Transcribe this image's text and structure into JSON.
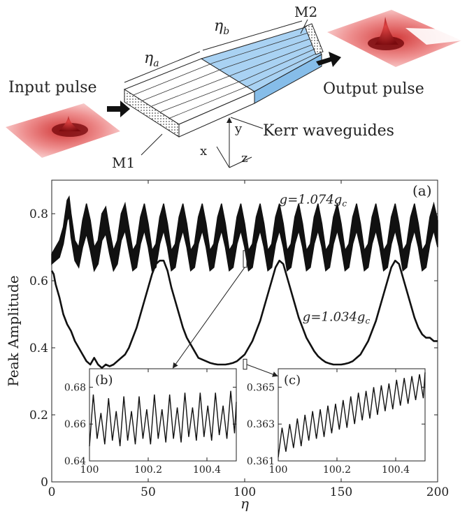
{
  "schematic": {
    "input_label": "Input pulse",
    "output_label": "Output pulse",
    "kerr_label": "Kerr waveguides",
    "m1_label": "M1",
    "m2_label": "M2",
    "eta_a": "η",
    "eta_a_sub": "a",
    "eta_b": "η",
    "eta_b_sub": "b",
    "axis_x": "x",
    "axis_y": "y",
    "axis_z": "z",
    "colors": {
      "pulse": "#c8181e",
      "pulse_light": "#f2b0b0",
      "blue_section": "#a9d2f3",
      "white_section": "#ffffff"
    }
  },
  "chart_data": [
    {
      "id": "main",
      "type": "line",
      "panel_label": "(a)",
      "xlabel": "η",
      "ylabel": "Peak Amplitude",
      "xlim": [
        0,
        200
      ],
      "ylim": [
        0,
        0.9
      ],
      "xticks": [
        0,
        50,
        100,
        150,
        200
      ],
      "yticks": [
        0,
        0.2,
        0.4,
        0.6,
        0.8
      ],
      "xtick_labels": [
        "0",
        "50",
        "100",
        "150",
        "200"
      ],
      "ytick_labels": [
        "0",
        "0.2",
        "0.4",
        "0.6",
        "0.8"
      ],
      "grid": false,
      "series": [
        {
          "name": "g=1.074g",
          "name_sub": "c",
          "band": true,
          "x": [
            0,
            2,
            4,
            6,
            8,
            9,
            10,
            12,
            14,
            16,
            18,
            20,
            22,
            24,
            26,
            28,
            30,
            32,
            34,
            36,
            38,
            40,
            42,
            44,
            46,
            48,
            50,
            52,
            54,
            56,
            58,
            60,
            62,
            64,
            66,
            68,
            70,
            72,
            74,
            76,
            78,
            80,
            82,
            84,
            86,
            88,
            90,
            92,
            94,
            96,
            98,
            100,
            102,
            104,
            106,
            108,
            110,
            112,
            114,
            116,
            118,
            120,
            122,
            124,
            126,
            128,
            130,
            132,
            134,
            136,
            138,
            140,
            142,
            144,
            146,
            148,
            150,
            152,
            154,
            156,
            158,
            160,
            162,
            164,
            166,
            168,
            170,
            172,
            174,
            176,
            178,
            180,
            182,
            184,
            186,
            188,
            190,
            192,
            194,
            196,
            198,
            200
          ],
          "y_upper": [
            0.68,
            0.7,
            0.72,
            0.76,
            0.84,
            0.85,
            0.8,
            0.72,
            0.7,
            0.78,
            0.83,
            0.78,
            0.7,
            0.72,
            0.8,
            0.82,
            0.75,
            0.69,
            0.72,
            0.8,
            0.83,
            0.76,
            0.69,
            0.71,
            0.79,
            0.83,
            0.77,
            0.69,
            0.71,
            0.79,
            0.83,
            0.77,
            0.69,
            0.71,
            0.79,
            0.83,
            0.77,
            0.69,
            0.71,
            0.79,
            0.83,
            0.77,
            0.69,
            0.71,
            0.79,
            0.83,
            0.77,
            0.69,
            0.71,
            0.79,
            0.83,
            0.77,
            0.69,
            0.71,
            0.79,
            0.83,
            0.77,
            0.69,
            0.71,
            0.79,
            0.83,
            0.77,
            0.69,
            0.71,
            0.79,
            0.83,
            0.77,
            0.69,
            0.71,
            0.79,
            0.83,
            0.77,
            0.69,
            0.71,
            0.79,
            0.83,
            0.77,
            0.69,
            0.71,
            0.79,
            0.83,
            0.77,
            0.69,
            0.71,
            0.79,
            0.83,
            0.77,
            0.69,
            0.71,
            0.79,
            0.83,
            0.77,
            0.69,
            0.71,
            0.79,
            0.83,
            0.77,
            0.69,
            0.71,
            0.79,
            0.83,
            0.78
          ],
          "y_lower": [
            0.65,
            0.66,
            0.67,
            0.71,
            0.78,
            0.79,
            0.73,
            0.66,
            0.64,
            0.7,
            0.74,
            0.69,
            0.63,
            0.65,
            0.72,
            0.74,
            0.68,
            0.63,
            0.65,
            0.72,
            0.75,
            0.69,
            0.63,
            0.64,
            0.71,
            0.75,
            0.7,
            0.63,
            0.64,
            0.71,
            0.75,
            0.7,
            0.63,
            0.64,
            0.71,
            0.75,
            0.7,
            0.63,
            0.64,
            0.71,
            0.75,
            0.7,
            0.63,
            0.64,
            0.71,
            0.75,
            0.7,
            0.63,
            0.64,
            0.71,
            0.75,
            0.7,
            0.63,
            0.64,
            0.71,
            0.75,
            0.7,
            0.63,
            0.64,
            0.71,
            0.75,
            0.7,
            0.63,
            0.64,
            0.71,
            0.75,
            0.7,
            0.63,
            0.64,
            0.71,
            0.75,
            0.7,
            0.63,
            0.64,
            0.71,
            0.75,
            0.7,
            0.63,
            0.64,
            0.71,
            0.75,
            0.7,
            0.63,
            0.64,
            0.71,
            0.75,
            0.7,
            0.63,
            0.64,
            0.71,
            0.75,
            0.7,
            0.63,
            0.64,
            0.71,
            0.75,
            0.7,
            0.63,
            0.64,
            0.71,
            0.75,
            0.7
          ]
        },
        {
          "name": "g=1.034g",
          "name_sub": "c",
          "band": false,
          "x": [
            0,
            1,
            2,
            4,
            6,
            8,
            10,
            12,
            14,
            16,
            18,
            20,
            22,
            24,
            26,
            28,
            30,
            32,
            34,
            36,
            38,
            40,
            42,
            44,
            46,
            48,
            50,
            52,
            54,
            56,
            58,
            60,
            62,
            64,
            66,
            68,
            70,
            72,
            74,
            76,
            78,
            80,
            82,
            84,
            86,
            88,
            90,
            92,
            94,
            96,
            98,
            100,
            102,
            104,
            106,
            108,
            110,
            112,
            114,
            116,
            118,
            120,
            122,
            124,
            126,
            128,
            130,
            132,
            134,
            136,
            138,
            140,
            142,
            144,
            146,
            148,
            150,
            152,
            154,
            156,
            158,
            160,
            162,
            164,
            166,
            168,
            170,
            172,
            174,
            176,
            178,
            180,
            182,
            184,
            186,
            188,
            190,
            192,
            194,
            196,
            198,
            200
          ],
          "y": [
            0.63,
            0.62,
            0.59,
            0.55,
            0.5,
            0.47,
            0.45,
            0.42,
            0.4,
            0.38,
            0.36,
            0.35,
            0.37,
            0.35,
            0.34,
            0.35,
            0.345,
            0.35,
            0.36,
            0.37,
            0.38,
            0.4,
            0.43,
            0.46,
            0.5,
            0.54,
            0.58,
            0.62,
            0.65,
            0.66,
            0.66,
            0.63,
            0.58,
            0.54,
            0.5,
            0.46,
            0.43,
            0.41,
            0.39,
            0.37,
            0.365,
            0.36,
            0.355,
            0.352,
            0.35,
            0.35,
            0.35,
            0.352,
            0.355,
            0.36,
            0.37,
            0.38,
            0.4,
            0.42,
            0.45,
            0.48,
            0.52,
            0.56,
            0.6,
            0.64,
            0.66,
            0.65,
            0.61,
            0.57,
            0.53,
            0.49,
            0.46,
            0.43,
            0.41,
            0.39,
            0.375,
            0.365,
            0.357,
            0.353,
            0.35,
            0.35,
            0.35,
            0.352,
            0.355,
            0.36,
            0.37,
            0.38,
            0.4,
            0.42,
            0.45,
            0.48,
            0.52,
            0.56,
            0.6,
            0.64,
            0.66,
            0.65,
            0.61,
            0.57,
            0.53,
            0.49,
            0.46,
            0.44,
            0.43,
            0.43,
            0.42,
            0.42
          ]
        }
      ],
      "annotations": [
        {
          "text": "g=1.074g",
          "sub": "c",
          "near": [
            118,
            0.83
          ]
        },
        {
          "text": "g=1.034g",
          "sub": "c",
          "near": [
            130,
            0.48
          ]
        }
      ]
    },
    {
      "id": "inset_b",
      "type": "line",
      "panel_label": "(b)",
      "xlim": [
        100,
        100.5
      ],
      "ylim": [
        0.64,
        0.69
      ],
      "xticks": [
        100,
        100.2,
        100.4
      ],
      "yticks": [
        0.64,
        0.66,
        0.68
      ],
      "xtick_labels": [
        "100",
        "100.2",
        "100.4"
      ],
      "ytick_labels": [
        "0.64",
        "0.66",
        "0.68"
      ],
      "series": [
        {
          "x": [
            100.0,
            100.013,
            100.026,
            100.039,
            100.052,
            100.065,
            100.078,
            100.091,
            100.104,
            100.117,
            100.13,
            100.143,
            100.156,
            100.169,
            100.182,
            100.195,
            100.208,
            100.221,
            100.234,
            100.247,
            100.26,
            100.273,
            100.286,
            100.299,
            100.312,
            100.325,
            100.338,
            100.351,
            100.364,
            100.377,
            100.39,
            100.403,
            100.416,
            100.429,
            100.442,
            100.455,
            100.468,
            100.481,
            100.494,
            100.5
          ],
          "y": [
            0.648,
            0.676,
            0.652,
            0.666,
            0.649,
            0.674,
            0.651,
            0.667,
            0.648,
            0.675,
            0.651,
            0.667,
            0.649,
            0.675,
            0.652,
            0.668,
            0.649,
            0.676,
            0.652,
            0.668,
            0.65,
            0.676,
            0.652,
            0.669,
            0.65,
            0.677,
            0.653,
            0.669,
            0.651,
            0.677,
            0.653,
            0.67,
            0.651,
            0.677,
            0.654,
            0.67,
            0.652,
            0.678,
            0.655,
            0.672
          ]
        }
      ]
    },
    {
      "id": "inset_c",
      "type": "line",
      "panel_label": "(c)",
      "xlim": [
        100,
        100.5
      ],
      "ylim": [
        0.361,
        0.366
      ],
      "xticks": [
        100,
        100.2,
        100.4
      ],
      "yticks": [
        0.361,
        0.363,
        0.365
      ],
      "xtick_labels": [
        "100",
        "100.2",
        "100.4"
      ],
      "ytick_labels": [
        "0.361",
        "0.363",
        "0.365"
      ],
      "series": [
        {
          "x": [
            100.0,
            100.013,
            100.026,
            100.039,
            100.052,
            100.065,
            100.078,
            100.091,
            100.104,
            100.117,
            100.13,
            100.143,
            100.156,
            100.169,
            100.182,
            100.195,
            100.208,
            100.221,
            100.234,
            100.247,
            100.26,
            100.273,
            100.286,
            100.299,
            100.312,
            100.325,
            100.338,
            100.351,
            100.364,
            100.377,
            100.39,
            100.403,
            100.416,
            100.429,
            100.442,
            100.455,
            100.468,
            100.481,
            100.494,
            100.5
          ],
          "y": [
            0.3612,
            0.3628,
            0.3615,
            0.363,
            0.3617,
            0.3633,
            0.3618,
            0.3635,
            0.3621,
            0.3637,
            0.3622,
            0.3638,
            0.3623,
            0.364,
            0.3625,
            0.3641,
            0.3627,
            0.3643,
            0.3628,
            0.3645,
            0.363,
            0.3647,
            0.3632,
            0.3648,
            0.3633,
            0.365,
            0.3635,
            0.3651,
            0.3637,
            0.3652,
            0.3638,
            0.3654,
            0.364,
            0.3655,
            0.3641,
            0.3656,
            0.3643,
            0.3657,
            0.3644,
            0.3658
          ]
        }
      ]
    }
  ]
}
